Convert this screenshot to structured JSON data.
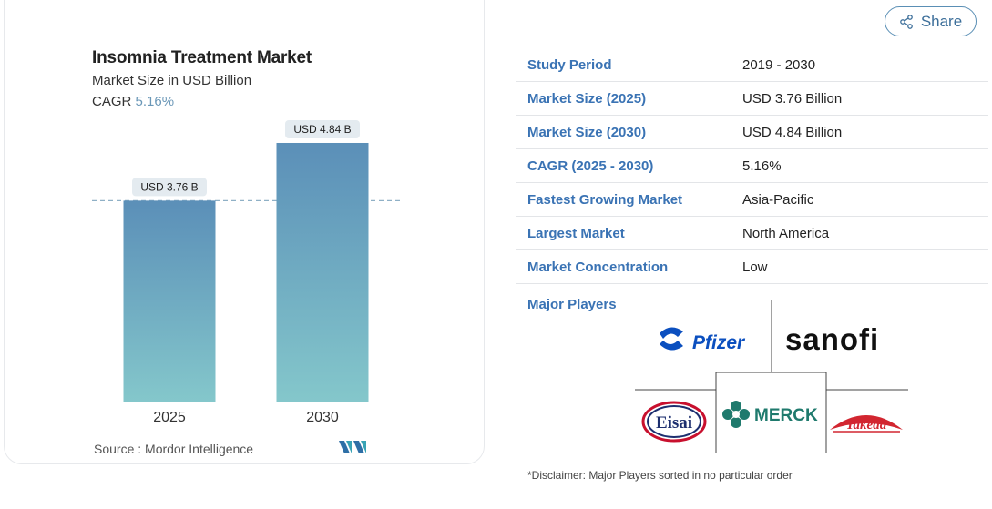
{
  "chart_data": {
    "type": "bar",
    "title": "Insomnia Treatment Market",
    "subtitle": "Market Size in USD Billion",
    "cagr_label": "CAGR",
    "cagr_value": "5.16%",
    "categories": [
      "2025",
      "2030"
    ],
    "values": [
      3.76,
      4.84
    ],
    "data_labels": [
      "USD 3.76 B",
      "USD 4.84 B"
    ],
    "ylim": [
      0,
      5.3
    ],
    "colors": {
      "bar_top": "#5b8fb8",
      "bar_bottom": "#84c7cb",
      "reference_line": "#8fb0c6"
    },
    "source": "Source : Mordor Intelligence"
  },
  "share": {
    "label": "Share"
  },
  "info_rows": [
    {
      "key": "Study Period",
      "value": "2019 - 2030"
    },
    {
      "key": "Market Size (2025)",
      "value": "USD 3.76 Billion"
    },
    {
      "key": "Market Size (2030)",
      "value": "USD 4.84 Billion"
    },
    {
      "key": "CAGR (2025 - 2030)",
      "value": "5.16%"
    },
    {
      "key": "Fastest Growing Market",
      "value": "Asia-Pacific"
    },
    {
      "key": "Largest Market",
      "value": "North America"
    },
    {
      "key": "Market Concentration",
      "value": "Low"
    }
  ],
  "major_players": {
    "label": "Major Players",
    "logos": [
      "Pfizer",
      "sanofi",
      "Eisai",
      "MERCK",
      "Takeda"
    ]
  },
  "disclaimer": "*Disclaimer: Major Players sorted in no particular order",
  "brand_colors": {
    "link": "#3a73b4",
    "pfizer": "#0b4fbf",
    "eisai": "#c8102e",
    "merck": "#1f7a6d",
    "takeda": "#d22630"
  }
}
